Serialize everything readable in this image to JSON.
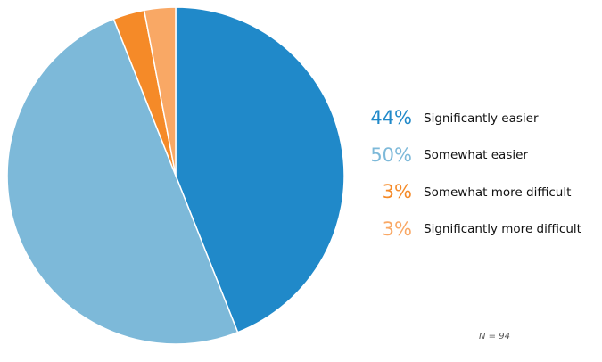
{
  "chart_data": {
    "type": "pie",
    "categories": [
      "Significantly easier",
      "Somewhat easier",
      "Somewhat more difficult",
      "Significantly more difficult"
    ],
    "values": [
      44,
      50,
      3,
      3
    ],
    "labels": [
      "44%",
      "50%",
      "3%",
      "3%"
    ],
    "colors": [
      "#2089c9",
      "#7db9d9",
      "#f58a28",
      "#f9a865"
    ],
    "start_angle_deg": 0,
    "direction": "clockwise",
    "legend_position": "right",
    "note": "N = 94"
  }
}
